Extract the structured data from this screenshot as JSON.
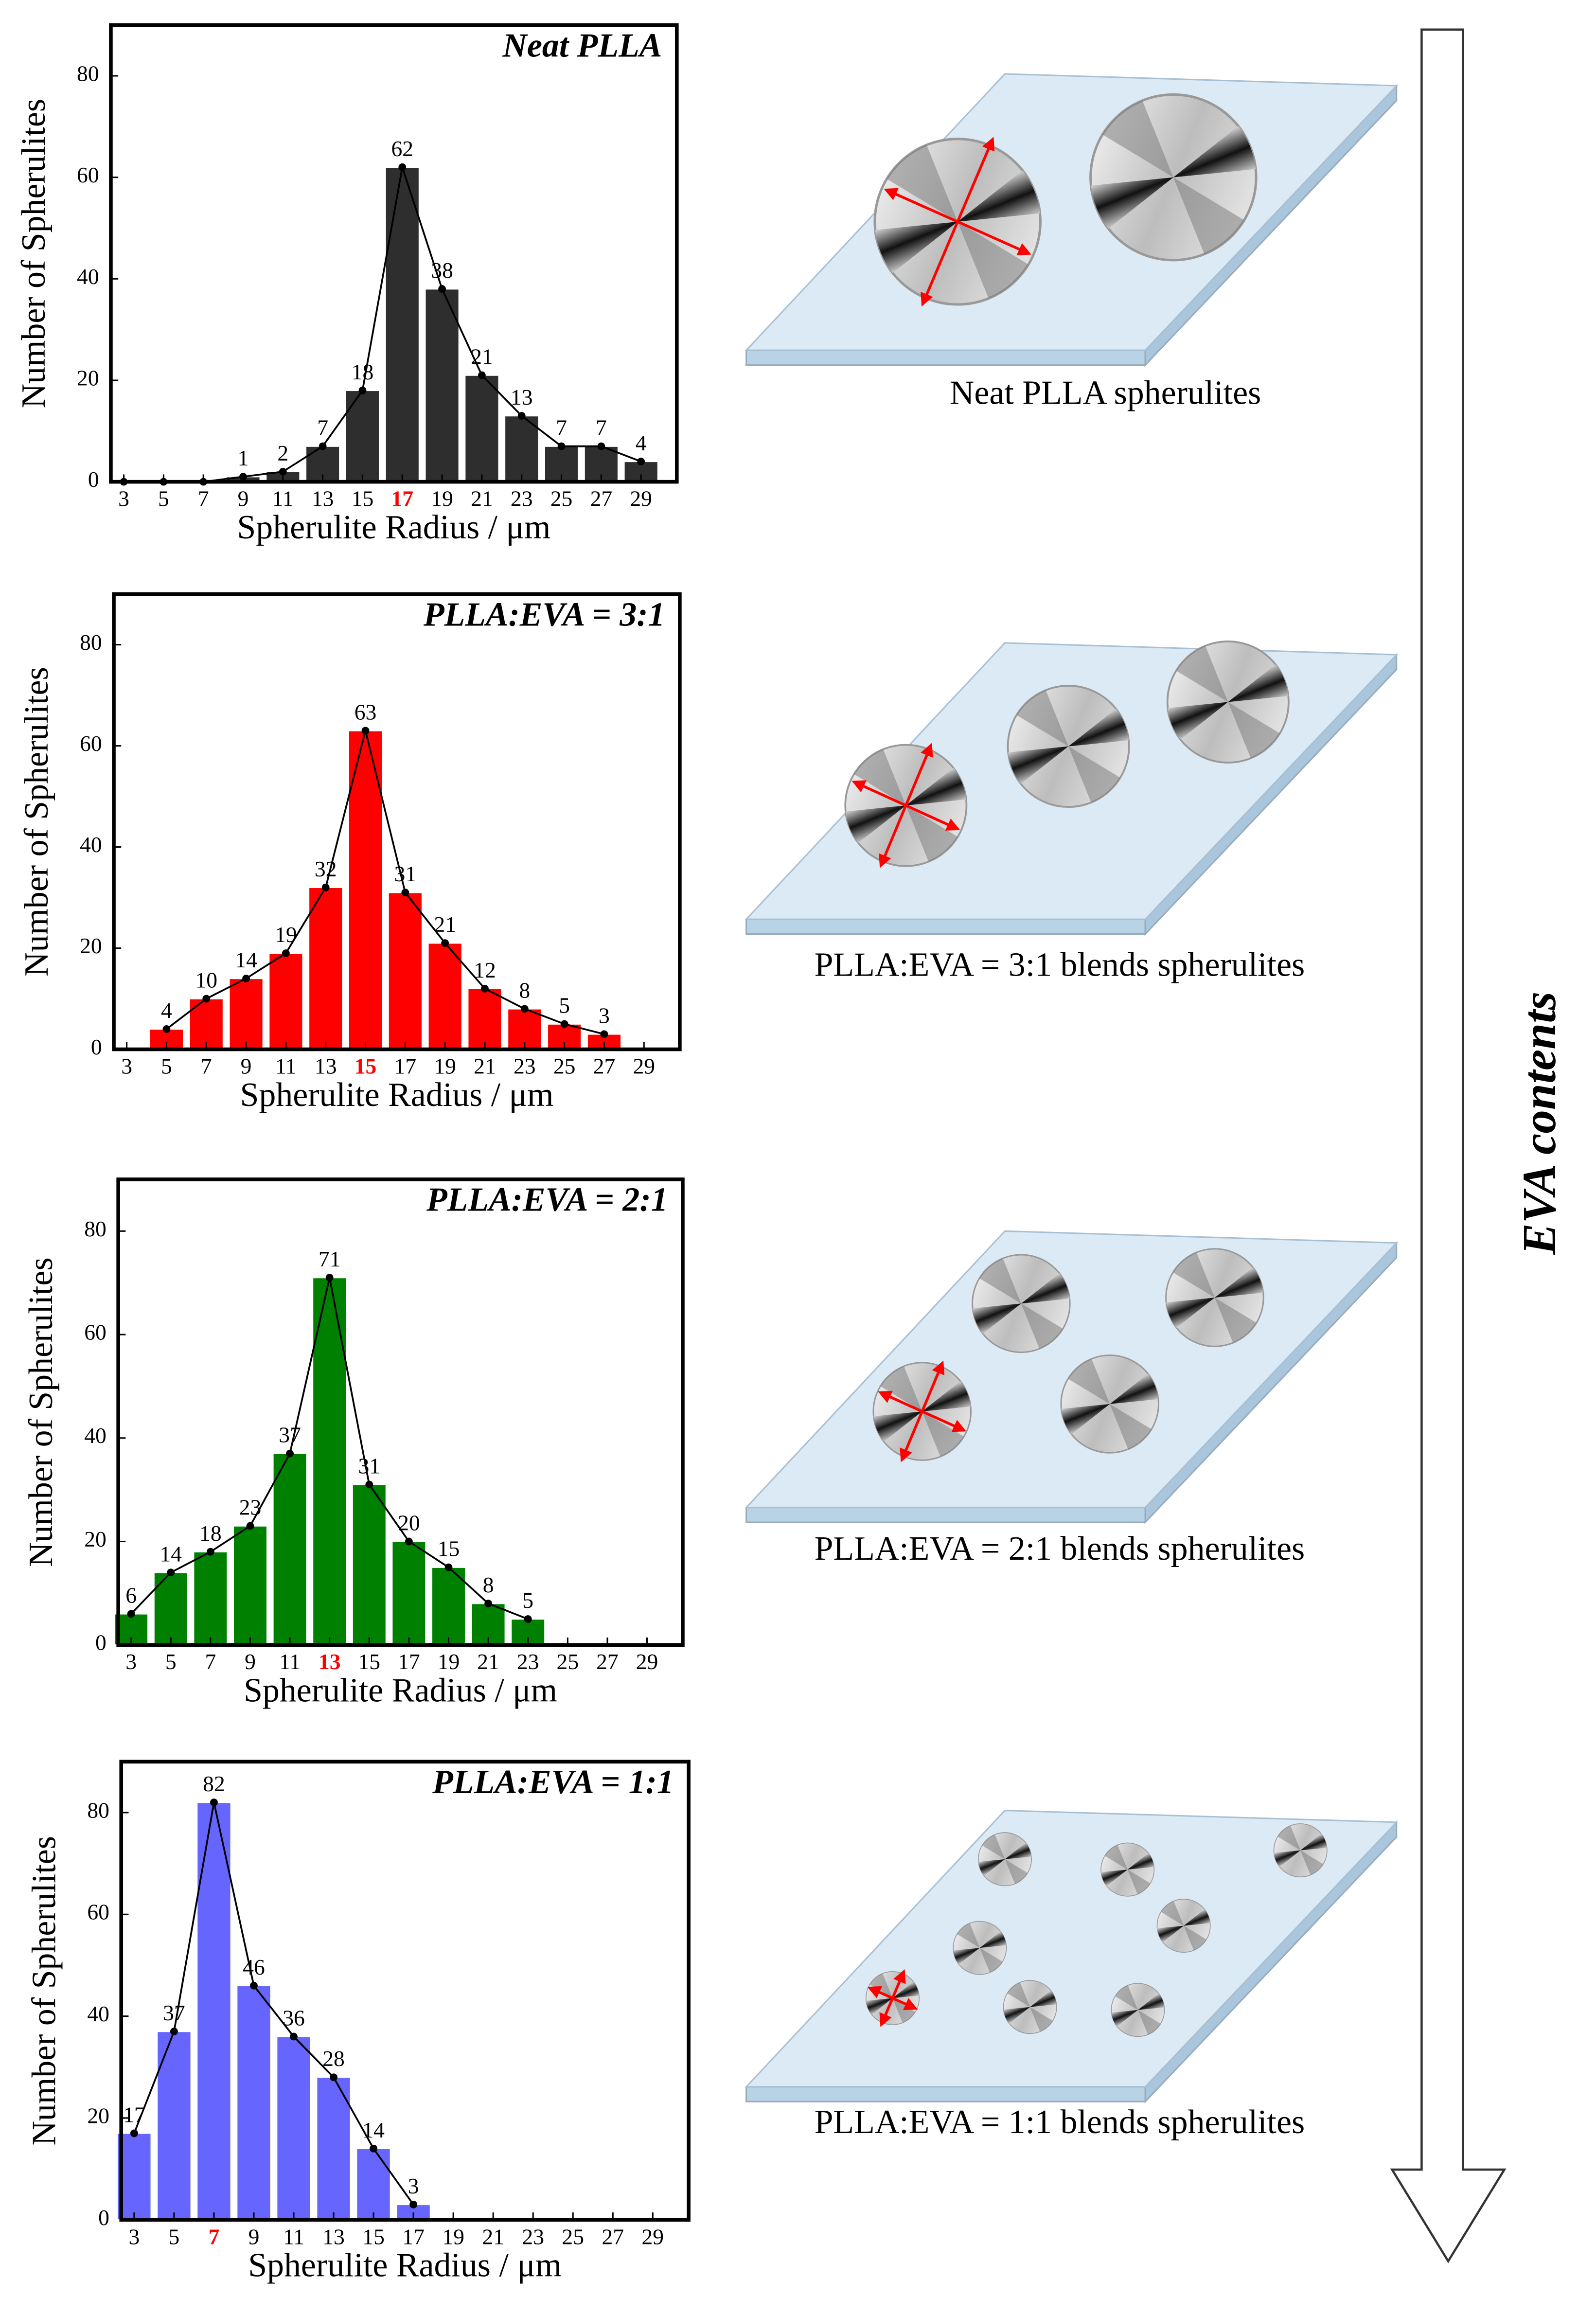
{
  "chart_data": [
    {
      "type": "bar",
      "title": "Neat PLLA",
      "xlabel": "Spherulite Radius / μm",
      "ylabel": "Number of Spherulites",
      "color": "#2e2e2e",
      "x": [
        3,
        5,
        7,
        9,
        11,
        13,
        15,
        17,
        19,
        21,
        23,
        25,
        27,
        29
      ],
      "values": [
        0,
        0,
        0,
        1,
        2,
        7,
        18,
        62,
        38,
        21,
        13,
        7,
        7,
        4
      ],
      "value_labels": [
        null,
        null,
        null,
        1,
        2,
        7,
        18,
        62,
        38,
        21,
        13,
        7,
        7,
        4
      ],
      "xticks": [
        3,
        5,
        7,
        9,
        11,
        13,
        15,
        17,
        19,
        21,
        23,
        25,
        27,
        29
      ],
      "xlim": [
        2.35,
        30.8
      ],
      "ylim": [
        0,
        90
      ],
      "yticks": [
        0,
        20,
        40,
        60,
        80
      ],
      "highlight_tick_index": 7,
      "highlight_color": "#ff0000"
    },
    {
      "type": "bar",
      "title": "PLLA:EVA = 3:1",
      "xlabel": "Spherulite Radius / μm",
      "ylabel": "Number of Spherulites",
      "color": "#ff0000",
      "x": [
        3,
        5,
        7,
        9,
        11,
        13,
        15,
        17,
        19,
        21,
        23,
        25,
        27,
        29
      ],
      "values": [
        null,
        4,
        10,
        14,
        19,
        32,
        63,
        31,
        21,
        12,
        8,
        5,
        3,
        null
      ],
      "xticks": [
        3,
        5,
        7,
        9,
        11,
        13,
        15,
        17,
        19,
        21,
        23,
        25,
        27,
        29
      ],
      "xlim": [
        2.35,
        30.8
      ],
      "ylim": [
        0,
        90
      ],
      "yticks": [
        0,
        20,
        40,
        60,
        80
      ],
      "highlight_tick_index": 6,
      "highlight_color": "#ff0000"
    },
    {
      "type": "bar",
      "title": "PLLA:EVA = 2:1",
      "xlabel": "Spherulite Radius / μm",
      "ylabel": "Number of Spherulites",
      "color": "#008000",
      "x": [
        3,
        5,
        7,
        9,
        11,
        13,
        15,
        17,
        19,
        21,
        23,
        25,
        27,
        29
      ],
      "values": [
        6,
        14,
        18,
        23,
        37,
        71,
        31,
        20,
        15,
        8,
        5,
        null,
        null,
        null
      ],
      "xticks": [
        3,
        5,
        7,
        9,
        11,
        13,
        15,
        17,
        19,
        21,
        23,
        25,
        27,
        29
      ],
      "xlim": [
        2.35,
        30.8
      ],
      "ylim": [
        0,
        90
      ],
      "yticks": [
        0,
        20,
        40,
        60,
        80
      ],
      "highlight_tick_index": 5,
      "highlight_color": "#ff0000"
    },
    {
      "type": "bar",
      "title": "PLLA:EVA = 1:1",
      "xlabel": "Spherulite Radius / μm",
      "ylabel": "Number of Spherulites",
      "color": "#6666ff",
      "x": [
        3,
        5,
        7,
        9,
        11,
        13,
        15,
        17,
        19,
        21,
        23,
        25,
        27,
        29
      ],
      "values": [
        17,
        37,
        82,
        46,
        36,
        28,
        14,
        3,
        null,
        null,
        null,
        null,
        null,
        null
      ],
      "xticks": [
        3,
        5,
        7,
        9,
        11,
        13,
        15,
        17,
        19,
        21,
        23,
        25,
        27,
        29
      ],
      "xlim": [
        2.35,
        30.8
      ],
      "ylim": [
        0,
        90
      ],
      "yticks": [
        0,
        20,
        40,
        60,
        80
      ],
      "highlight_tick_index": 2,
      "highlight_color": "#ff0000"
    }
  ],
  "captions": [
    "Neat PLLA spherulites",
    "PLLA:EVA = 3:1 blends spherulites",
    "PLLA:EVA = 2:1 blends spherulites",
    "PLLA:EVA = 1:1 blends spherulites"
  ],
  "arrow_label": "EVA contents"
}
